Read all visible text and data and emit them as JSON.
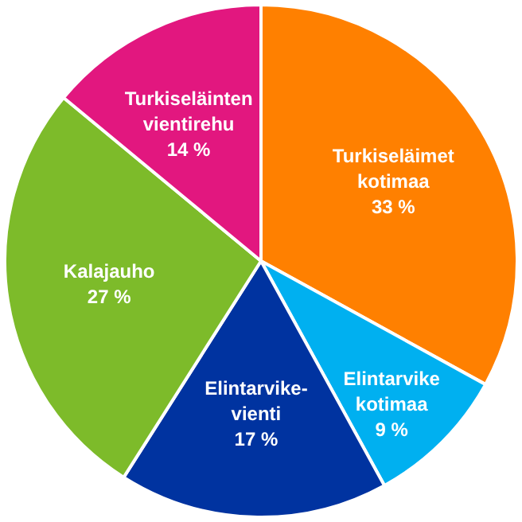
{
  "chart_data": {
    "type": "pie",
    "categories": [
      "Turkiseläimet kotimaa",
      "Elintarvike kotimaa",
      "Elintarvike-vienti",
      "Kalajauho",
      "Turkiseläinten vientirehu"
    ],
    "values": [
      33,
      9,
      17,
      27,
      14
    ],
    "value_labels": [
      "33 %",
      "9 %",
      "17 %",
      "27 %",
      "14 %"
    ],
    "colors": [
      "#ff8000",
      "#00b0f0",
      "#0033a0",
      "#7dbb2a",
      "#e2177f"
    ],
    "legend": false
  }
}
